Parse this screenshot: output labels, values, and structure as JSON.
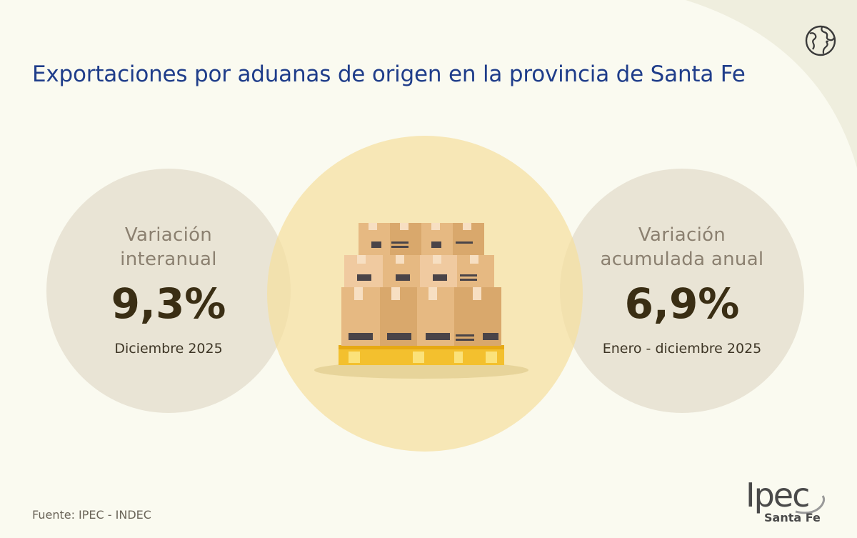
{
  "title": "Exportaciones por aduanas de origen en la provincia de Santa Fe",
  "indicators": [
    {
      "label_line1": "Variación",
      "label_line2": "interanual",
      "value": "9,3%",
      "period": "Diciembre 2025"
    },
    {
      "label_line1": "Variación",
      "label_line2": "acumulada anual",
      "value": "6,9%",
      "period": "Enero - diciembre 2025"
    }
  ],
  "source": "Fuente: IPEC - INDEC",
  "logo": {
    "wordmark": "Ipec",
    "subtitle": "Santa Fe"
  },
  "icons": {
    "globe": "globe-icon",
    "illustration": "pallet-boxes-icon"
  },
  "colors": {
    "title": "#1f3d8a",
    "value": "#3a2e14",
    "accent": "#f5dfa0"
  }
}
